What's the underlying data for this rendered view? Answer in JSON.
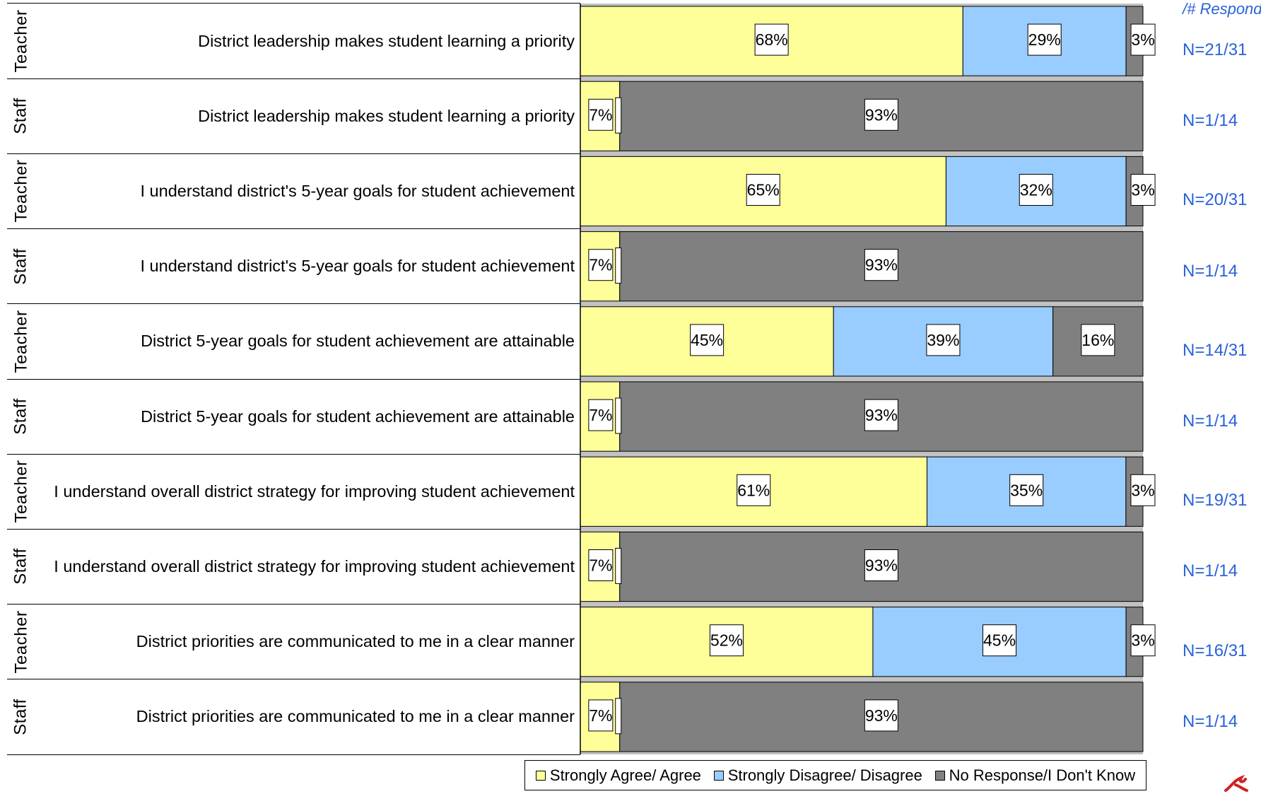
{
  "chart_data": {
    "type": "bar",
    "orientation": "horizontal",
    "stacked": "percent",
    "colors": {
      "agree": "#ffff99",
      "disagree": "#99ccff",
      "no_response": "#808080"
    },
    "legend": {
      "placement": "bottom",
      "entries": [
        "Strongly Agree/ Agree",
        "Strongly Disagree/ Disagree",
        "No Response/I Don't Know"
      ]
    },
    "respondents_header": "/# Respond",
    "rows": [
      {
        "group": "Teacher",
        "question": "District leadership makes student learning a priority",
        "values": [
          68,
          29,
          3
        ],
        "labels": [
          "68%",
          "29%",
          "3%"
        ],
        "n": "N=21/31"
      },
      {
        "group": "Staff",
        "question": "District leadership makes student learning a priority",
        "values": [
          7,
          0,
          93
        ],
        "labels": [
          "7%",
          "",
          "93%"
        ],
        "n": "N=1/14"
      },
      {
        "group": "Teacher",
        "question": "I understand district's 5-year goals for student achievement",
        "values": [
          65,
          32,
          3
        ],
        "labels": [
          "65%",
          "32%",
          "3%"
        ],
        "n": "N=20/31"
      },
      {
        "group": "Staff",
        "question": "I understand district's 5-year goals for student achievement",
        "values": [
          7,
          0,
          93
        ],
        "labels": [
          "7%",
          "",
          "93%"
        ],
        "n": "N=1/14"
      },
      {
        "group": "Teacher",
        "question": "District 5-year goals for student achievement are attainable",
        "values": [
          45,
          39,
          16
        ],
        "labels": [
          "45%",
          "39%",
          "16%"
        ],
        "n": "N=14/31"
      },
      {
        "group": "Staff",
        "question": "District 5-year goals for student achievement are attainable",
        "values": [
          7,
          0,
          93
        ],
        "labels": [
          "7%",
          "",
          "93%"
        ],
        "n": "N=1/14"
      },
      {
        "group": "Teacher",
        "question": "I understand overall district strategy for improving student achievement",
        "values": [
          61,
          35,
          3
        ],
        "labels": [
          "61%",
          "35%",
          "3%"
        ],
        "n": "N=19/31"
      },
      {
        "group": "Staff",
        "question": "I understand overall district strategy for improving student achievement",
        "values": [
          7,
          0,
          93
        ],
        "labels": [
          "7%",
          "",
          "93%"
        ],
        "n": "N=1/14"
      },
      {
        "group": "Teacher",
        "question": "District priorities are communicated to me in a clear manner",
        "values": [
          52,
          45,
          3
        ],
        "labels": [
          "52%",
          "45%",
          "3%"
        ],
        "n": "N=16/31"
      },
      {
        "group": "Staff",
        "question": "District priorities are communicated to me in a clear manner",
        "values": [
          7,
          0,
          93
        ],
        "labels": [
          "7%",
          "",
          "93%"
        ],
        "n": "N=1/14"
      }
    ]
  },
  "logo_icon": "red-squiggle-logo-icon"
}
